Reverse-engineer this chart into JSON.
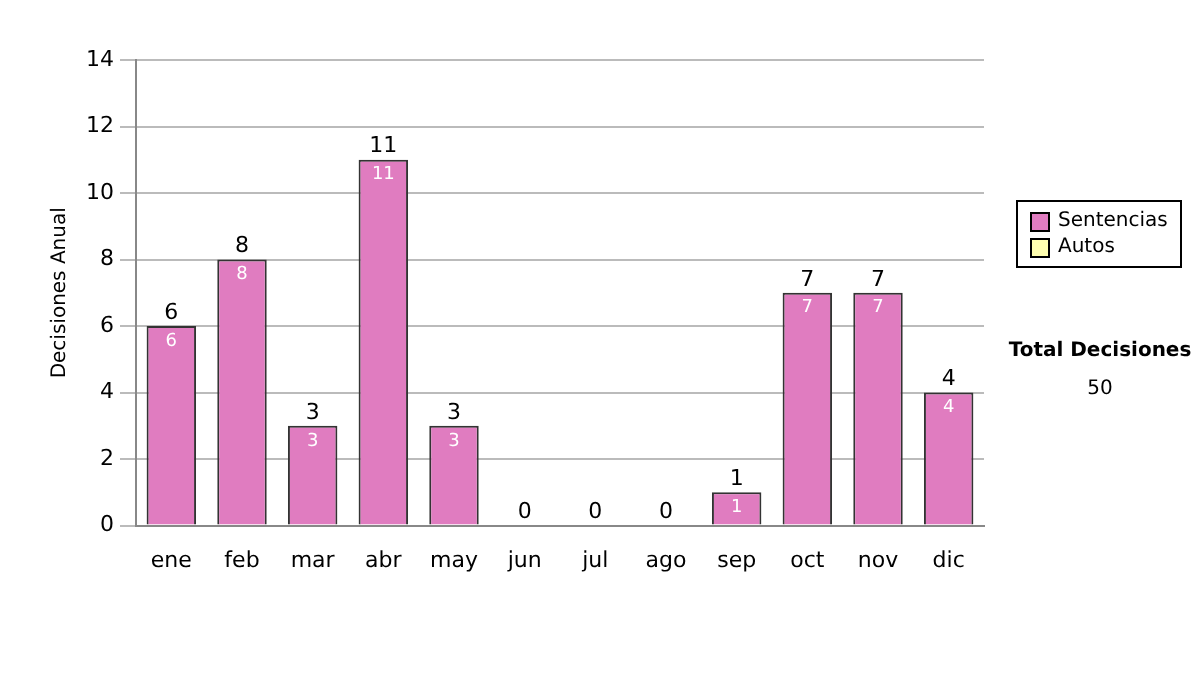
{
  "chart_data": {
    "type": "bar",
    "ylabel": "Decisiones Anual",
    "categories": [
      "ene",
      "feb",
      "mar",
      "abr",
      "may",
      "jun",
      "jul",
      "ago",
      "sep",
      "oct",
      "nov",
      "dic"
    ],
    "series": [
      {
        "name": "Sentencias",
        "color": "#e07cc0",
        "values": [
          6,
          8,
          3,
          11,
          3,
          0,
          0,
          0,
          1,
          7,
          7,
          4
        ],
        "value_labels": [
          "6",
          "8",
          "3",
          "11",
          "3",
          null,
          null,
          null,
          "1",
          "7",
          "7",
          "4"
        ]
      },
      {
        "name": "Autos",
        "color": "#ffffb0",
        "values": [
          0,
          0,
          0,
          0,
          0,
          0,
          0,
          0,
          0,
          0,
          0,
          0
        ]
      }
    ],
    "stacked": true,
    "totals": [
      "6",
      "8",
      "3",
      "11",
      "3",
      "0",
      "0",
      "0",
      "1",
      "7",
      "7",
      "4"
    ],
    "ylim": [
      0,
      14
    ],
    "yticks": [
      0,
      2,
      4,
      6,
      8,
      10,
      12,
      14
    ],
    "grid": "y",
    "legend": "right",
    "annotations": [
      "Total Decisiones",
      "50"
    ]
  }
}
